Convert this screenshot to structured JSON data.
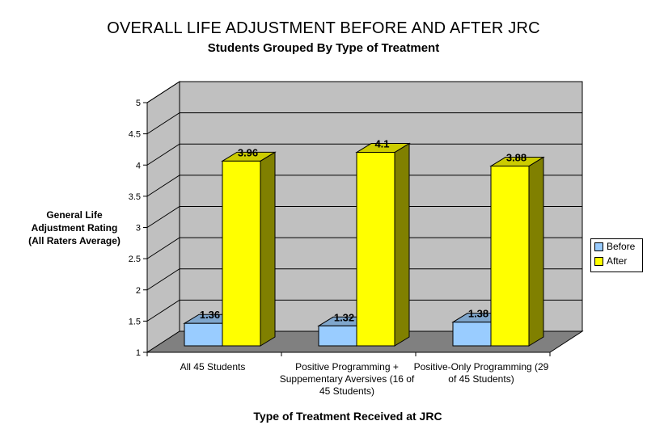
{
  "chart_data": {
    "type": "bar",
    "title": "OVERALL LIFE ADJUSTMENT BEFORE AND AFTER JRC",
    "subtitle": "Students Grouped By Type of Treatment",
    "ylabel": "General Life\nAdjustment Rating\n(All Raters Average)",
    "xlabel": "Type of Treatment Received at JRC",
    "ylim": [
      1,
      5
    ],
    "yticks": [
      "1",
      "1.5",
      "2",
      "2.5",
      "3",
      "3.5",
      "4",
      "4.5",
      "5"
    ],
    "categories": [
      "All 45 Students",
      "Positive Programming + Suppementary Aversives (16 of 45 Students)",
      "Positive-Only Programming (29 of 45 Students)"
    ],
    "series": [
      {
        "name": "Before",
        "values": [
          1.36,
          1.32,
          1.38
        ],
        "labels": [
          "1.36",
          "1.32",
          "1.38"
        ],
        "color": "#99ccff"
      },
      {
        "name": "After",
        "values": [
          3.96,
          4.1,
          3.88
        ],
        "labels": [
          "3.96",
          "4.1",
          "3.88"
        ],
        "color": "#ffff00"
      }
    ],
    "grid": true,
    "legend_position": "right",
    "colors": {
      "wall": "#c0c0c0",
      "floor": "#808080",
      "after_side": "#808000",
      "before_side": "#3f6080"
    }
  }
}
